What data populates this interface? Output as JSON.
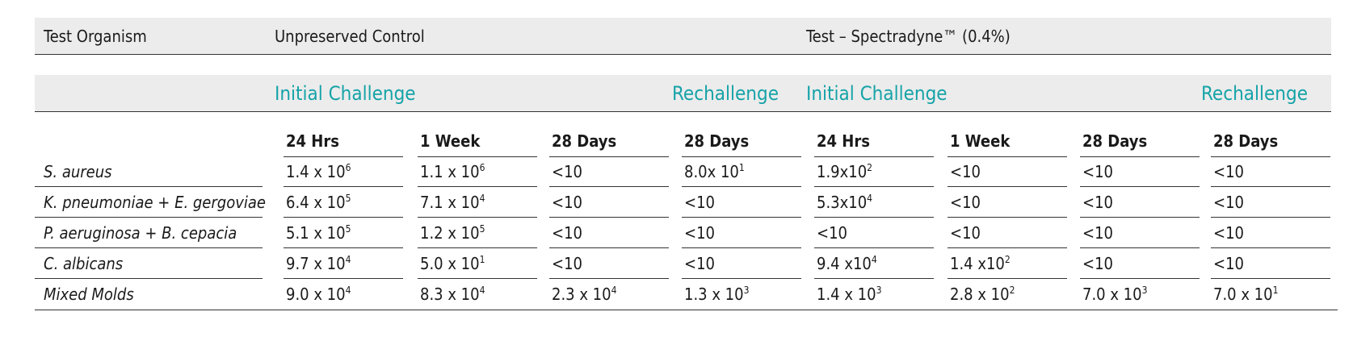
{
  "header": {
    "organism_label": "Test Organism",
    "control_label": "Unpreserved Control",
    "test_label": "Test – Spectradyne™ (0.4%)"
  },
  "phases": {
    "control_initial": "Initial Challenge",
    "control_rechallenge": "Rechallenge",
    "test_initial": "Initial Challenge",
    "test_rechallenge": "Rechallenge"
  },
  "columns": [
    "24 Hrs",
    "1 Week",
    "28 Days",
    "28 Days",
    "24 Hrs",
    "1 Week",
    "28 Days",
    "28 Days"
  ],
  "rows": [
    {
      "organism": "S. aureus",
      "values": [
        {
          "b": "1.4 x 10",
          "e": "6"
        },
        {
          "b": "1.1 x 10",
          "e": "6"
        },
        {
          "b": "<10",
          "e": ""
        },
        {
          "b": "8.0x 10",
          "e": "1"
        },
        {
          "b": "1.9x10",
          "e": "2"
        },
        {
          "b": "<10",
          "e": ""
        },
        {
          "b": "<10",
          "e": ""
        },
        {
          "b": "<10",
          "e": ""
        }
      ]
    },
    {
      "organism": "K. pneumoniae + E. gergoviae",
      "values": [
        {
          "b": "6.4 x 10",
          "e": "5"
        },
        {
          "b": "7.1 x 10",
          "e": "4"
        },
        {
          "b": "<10",
          "e": ""
        },
        {
          "b": "<10",
          "e": ""
        },
        {
          "b": "5.3x10",
          "e": "4"
        },
        {
          "b": "<10",
          "e": ""
        },
        {
          "b": "<10",
          "e": ""
        },
        {
          "b": "<10",
          "e": ""
        }
      ]
    },
    {
      "organism": "P. aeruginosa + B. cepacia",
      "values": [
        {
          "b": "5.1 x 10",
          "e": "5"
        },
        {
          "b": "1.2 x 10",
          "e": "5"
        },
        {
          "b": "<10",
          "e": ""
        },
        {
          "b": "<10",
          "e": ""
        },
        {
          "b": "<10",
          "e": ""
        },
        {
          "b": "<10",
          "e": ""
        },
        {
          "b": "<10",
          "e": ""
        },
        {
          "b": "<10",
          "e": ""
        }
      ]
    },
    {
      "organism": "C. albicans",
      "values": [
        {
          "b": "9.7 x 10",
          "e": "4"
        },
        {
          "b": "5.0 x 10",
          "e": "1"
        },
        {
          "b": "<10",
          "e": ""
        },
        {
          "b": "<10",
          "e": ""
        },
        {
          "b": "9.4 x10",
          "e": "4"
        },
        {
          "b": "1.4 x10",
          "e": "2"
        },
        {
          "b": "<10",
          "e": ""
        },
        {
          "b": "<10",
          "e": ""
        }
      ]
    },
    {
      "organism": "Mixed Molds",
      "values": [
        {
          "b": "9.0 x 10",
          "e": "4"
        },
        {
          "b": "8.3 x 10",
          "e": "4"
        },
        {
          "b": "2.3 x 10",
          "e": "4"
        },
        {
          "b": "1.3 x 10",
          "e": "3"
        },
        {
          "b": "1.4 x 10",
          "e": "3"
        },
        {
          "b": "2.8 x 10",
          "e": "2"
        },
        {
          "b": "7.0 x 10",
          "e": "3"
        },
        {
          "b": "7.0 x 10",
          "e": "1"
        }
      ]
    }
  ],
  "colors": {
    "accent": "#16a3a8",
    "band": "#ececec",
    "rule": "#333333"
  }
}
